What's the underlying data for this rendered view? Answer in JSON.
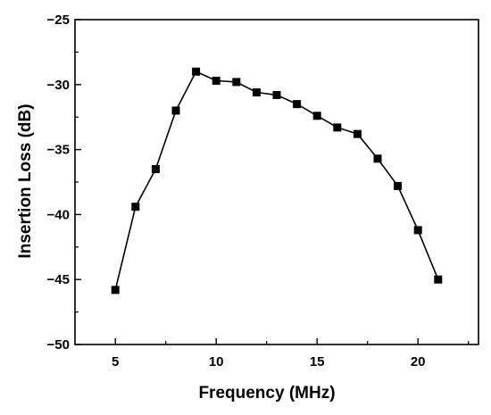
{
  "chart_data": {
    "type": "line",
    "xlabel": "Frequency (MHz)",
    "ylabel": "Insertion Loss (dB)",
    "xlim": [
      3,
      23
    ],
    "ylim": [
      -50,
      -25
    ],
    "xticks": [
      5,
      10,
      15,
      20
    ],
    "yticks": [
      -50,
      -45,
      -40,
      -35,
      -30,
      -25
    ],
    "grid": false,
    "marker": "square",
    "color": "#000000",
    "series": [
      {
        "x": [
          5,
          6,
          7,
          8,
          9,
          10,
          11,
          12,
          13,
          14,
          15,
          16,
          17,
          18,
          19,
          20,
          21
        ],
        "y": [
          -45.8,
          -39.4,
          -36.5,
          -32.0,
          -29.0,
          -29.7,
          -29.8,
          -30.6,
          -30.8,
          -31.5,
          -32.4,
          -33.3,
          -33.8,
          -35.7,
          -37.8,
          -41.2,
          -45.0
        ]
      }
    ]
  }
}
